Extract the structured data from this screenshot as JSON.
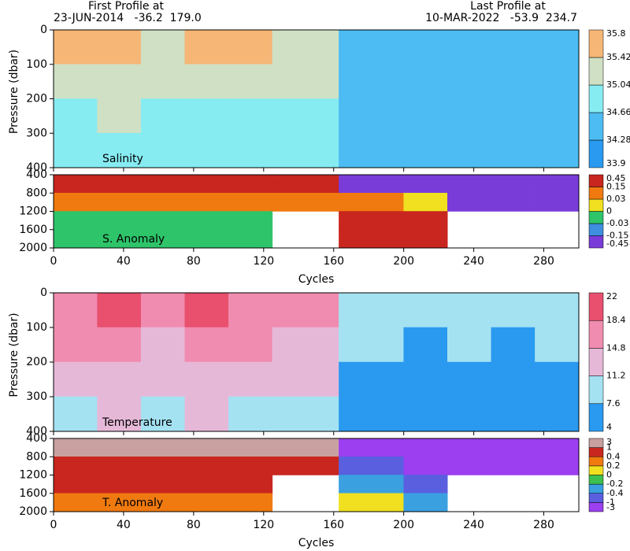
{
  "header": {
    "first_label": "First Profile at",
    "first_value": "23-JUN-2014   -36.2  179.0",
    "last_label": "Last Profile at",
    "last_value": "10-MAR-2022   -53.9  234.7"
  },
  "chart_data": [
    {
      "type": "heatmap",
      "label": "Salinity",
      "ylabel": "Pressure (dbar)",
      "xlim": [
        0,
        300
      ],
      "xticks": [
        0,
        40,
        80,
        120,
        160,
        200,
        240,
        280
      ],
      "ylim": [
        0,
        400
      ],
      "y_inverted": true,
      "yticks": [
        0,
        100,
        200,
        300,
        400
      ],
      "x_bins": [
        0,
        25,
        50,
        75,
        100,
        125,
        163,
        200,
        225,
        250,
        275,
        300
      ],
      "depth_bins": [
        0,
        100,
        200,
        300,
        400
      ],
      "values": [
        [
          35.5,
          35.6,
          35.2,
          35.6,
          35.5,
          35.3,
          34.4,
          34.4,
          34.5,
          34.4,
          34.3
        ],
        [
          35.3,
          35.4,
          35.1,
          35.4,
          35.2,
          35.1,
          34.4,
          34.5,
          34.4,
          34.4,
          34.4
        ],
        [
          35.0,
          35.1,
          34.9,
          35.0,
          34.9,
          34.9,
          34.4,
          34.4,
          34.3,
          34.4,
          34.4
        ],
        [
          34.8,
          34.8,
          34.7,
          34.7,
          34.7,
          34.8,
          34.3,
          34.4,
          34.3,
          34.3,
          34.3
        ]
      ],
      "colorbar": {
        "bounds": [
          33.9,
          34.28,
          34.66,
          35.04,
          35.42,
          35.8
        ],
        "colors": [
          "#2a9af0",
          "#4cbcf2",
          "#86ecf2",
          "#cfe0c4",
          "#f6b676"
        ]
      }
    },
    {
      "type": "heatmap",
      "label": "S. Anomaly",
      "xlabel": "Cycles",
      "xlim": [
        0,
        300
      ],
      "xticks": [
        0,
        40,
        80,
        120,
        160,
        200,
        240,
        280
      ],
      "ylim": [
        400,
        2000
      ],
      "y_inverted": true,
      "yticks": [
        400,
        800,
        1200,
        1600,
        2000
      ],
      "x_bins": [
        0,
        25,
        50,
        75,
        100,
        125,
        163,
        200,
        225,
        250,
        275,
        300
      ],
      "depth_bins": [
        400,
        800,
        1200,
        1600,
        2000
      ],
      "values": [
        [
          0.3,
          0.3,
          0.3,
          0.3,
          0.3,
          0.3,
          -0.3,
          -0.3,
          -0.3,
          -0.3,
          -0.3
        ],
        [
          0.1,
          0.05,
          0.1,
          0.05,
          0.1,
          0.1,
          0.1,
          0.02,
          -0.2,
          -0.2,
          -0.2
        ],
        [
          -0.01,
          -0.02,
          -0.02,
          -0.02,
          -0.02,
          null,
          0.2,
          0.2,
          null,
          null,
          null
        ],
        [
          -0.02,
          -0.02,
          -0.02,
          -0.02,
          -0.02,
          null,
          0.2,
          0.2,
          null,
          null,
          null
        ]
      ],
      "colorbar": {
        "bounds": [
          -0.45,
          -0.15,
          -0.03,
          0,
          0.03,
          0.15,
          0.45
        ],
        "colors": [
          "#7a3cd8",
          "#3f8fe0",
          "#2ec46a",
          "#f0e020",
          "#f07a10",
          "#c8261e"
        ]
      }
    },
    {
      "type": "heatmap",
      "label": "Temperature",
      "ylabel": "Pressure (dbar)",
      "xlim": [
        0,
        300
      ],
      "xticks": [
        0,
        40,
        80,
        120,
        160,
        200,
        240,
        280
      ],
      "ylim": [
        0,
        400
      ],
      "y_inverted": true,
      "yticks": [
        0,
        100,
        200,
        300,
        400
      ],
      "x_bins": [
        0,
        25,
        50,
        75,
        100,
        125,
        163,
        200,
        225,
        250,
        275,
        300
      ],
      "depth_bins": [
        0,
        100,
        200,
        300,
        400
      ],
      "values": [
        [
          17,
          19,
          15,
          19,
          18,
          15,
          9,
          8,
          8,
          8,
          8
        ],
        [
          15,
          16,
          14,
          16,
          15,
          14,
          8,
          7,
          8,
          7,
          8
        ],
        [
          13,
          14,
          12,
          13,
          13,
          12,
          7,
          7,
          7,
          7,
          7
        ],
        [
          11,
          12,
          11,
          12,
          11,
          11,
          6,
          6,
          7,
          6,
          6
        ]
      ],
      "colorbar": {
        "bounds": [
          4,
          7.6,
          11.2,
          14.8,
          18.4,
          22
        ],
        "colors": [
          "#2a9af0",
          "#a4e2f2",
          "#e6b8d8",
          "#f08cb0",
          "#e8506e"
        ]
      }
    },
    {
      "type": "heatmap",
      "label": "T. Anomaly",
      "xlabel": "Cycles",
      "xlim": [
        0,
        300
      ],
      "xticks": [
        0,
        40,
        80,
        120,
        160,
        200,
        240,
        280
      ],
      "ylim": [
        400,
        2000
      ],
      "y_inverted": true,
      "yticks": [
        400,
        800,
        1200,
        1600,
        2000
      ],
      "x_bins": [
        0,
        25,
        50,
        75,
        100,
        125,
        163,
        200,
        225,
        250,
        275,
        300
      ],
      "depth_bins": [
        400,
        800,
        1200,
        1600,
        2000
      ],
      "values": [
        [
          1.5,
          1.5,
          1.5,
          1.5,
          1.5,
          1.5,
          -1.5,
          -1.5,
          -1.5,
          -1.5,
          -1.5
        ],
        [
          0.6,
          0.6,
          0.6,
          0.6,
          0.6,
          0.6,
          -0.6,
          -1.5,
          -1.5,
          -1.5,
          -1.5
        ],
        [
          0.5,
          0.5,
          0.5,
          0.5,
          0.5,
          null,
          -0.3,
          -0.6,
          null,
          null,
          null
        ],
        [
          0.3,
          0.3,
          0.3,
          0.3,
          0.3,
          null,
          0.1,
          -0.3,
          null,
          null,
          null
        ]
      ],
      "colorbar": {
        "bounds": [
          -3,
          -1,
          -0.4,
          -0.2,
          0,
          0.2,
          0.4,
          1,
          3
        ],
        "colors": [
          "#9b3ff0",
          "#5a5fe0",
          "#3aa0e0",
          "#3cc050",
          "#f0e020",
          "#f07a10",
          "#c8261e",
          "#c8a0a0"
        ]
      }
    }
  ]
}
